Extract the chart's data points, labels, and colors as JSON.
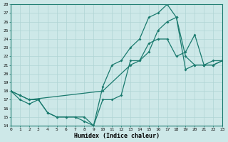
{
  "xlabel": "Humidex (Indice chaleur)",
  "background_color": "#cde8e8",
  "grid_color": "#b0d4d4",
  "line_color": "#1a7a6e",
  "xlim": [
    0,
    23
  ],
  "ylim": [
    14,
    28
  ],
  "yticks": [
    14,
    15,
    16,
    17,
    18,
    19,
    20,
    21,
    22,
    23,
    24,
    25,
    26,
    27,
    28
  ],
  "xticks": [
    0,
    1,
    2,
    3,
    4,
    5,
    6,
    7,
    8,
    9,
    10,
    11,
    12,
    13,
    14,
    15,
    16,
    17,
    18,
    19,
    20,
    21,
    22,
    23
  ],
  "line1_x": [
    0,
    1,
    2,
    3,
    4,
    5,
    6,
    7,
    8,
    9,
    10,
    11,
    12,
    13,
    14,
    15,
    16,
    17,
    18,
    19,
    20,
    21,
    22,
    23
  ],
  "line1_y": [
    18,
    17,
    16.5,
    17,
    15.5,
    15,
    15,
    15,
    15,
    14,
    17,
    17,
    17.5,
    21.5,
    21.5,
    23.5,
    24,
    24,
    22,
    22.5,
    24.5,
    21,
    21,
    21.5
  ],
  "line2_x": [
    0,
    1,
    2,
    3,
    4,
    5,
    6,
    7,
    8,
    9,
    10,
    11,
    12,
    13,
    14,
    15,
    16,
    17,
    18,
    19,
    20,
    21,
    22,
    23
  ],
  "line2_y": [
    18,
    17.5,
    17,
    17,
    15.5,
    15,
    15,
    15,
    14.5,
    14,
    18.5,
    21,
    21.5,
    23,
    24,
    26.5,
    27,
    28,
    26.5,
    22,
    21,
    21,
    21.5,
    21.5
  ],
  "line3_x": [
    0,
    1,
    2,
    10,
    13,
    14,
    15,
    16,
    17,
    18,
    19,
    20,
    21,
    22,
    23
  ],
  "line3_y": [
    18,
    17.5,
    17,
    18,
    21,
    21.5,
    22.5,
    25,
    26,
    26.5,
    20.5,
    21,
    21,
    21,
    21.5
  ]
}
